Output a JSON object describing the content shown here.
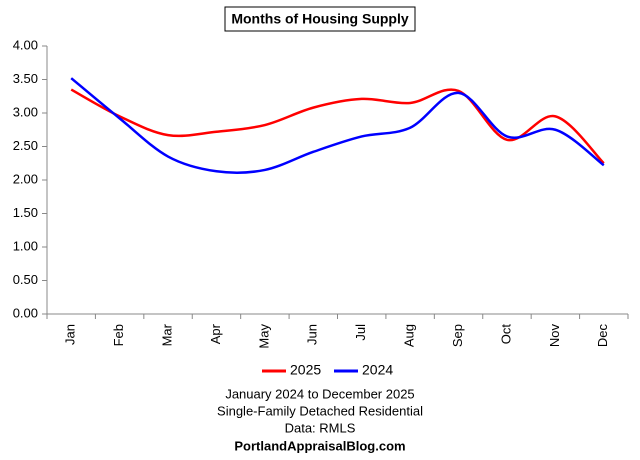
{
  "chart_data": {
    "type": "line",
    "title": "Months of Housing Supply",
    "categories": [
      "Jan",
      "Feb",
      "Mar",
      "Apr",
      "May",
      "Jun",
      "Jul",
      "Aug",
      "Sep",
      "Oct",
      "Nov",
      "Dec"
    ],
    "series": [
      {
        "name": "2025",
        "color": "#ff0000",
        "values": [
          3.35,
          2.95,
          2.67,
          2.72,
          2.82,
          3.08,
          3.21,
          3.15,
          3.33,
          2.6,
          2.95,
          2.25
        ]
      },
      {
        "name": "2024",
        "color": "#0000ff",
        "values": [
          3.52,
          2.92,
          2.35,
          2.13,
          2.15,
          2.42,
          2.65,
          2.78,
          3.3,
          2.65,
          2.75,
          2.22
        ]
      }
    ],
    "ylim": [
      0,
      4
    ],
    "yticks": [
      {
        "value": 0,
        "label": "0.00"
      },
      {
        "value": 0.5,
        "label": "0.50"
      },
      {
        "value": 1,
        "label": "1.00"
      },
      {
        "value": 1.5,
        "label": "1.50"
      },
      {
        "value": 2,
        "label": "2.00"
      },
      {
        "value": 2.5,
        "label": "2.50"
      },
      {
        "value": 3,
        "label": "3.00"
      },
      {
        "value": 3.5,
        "label": "3.50"
      },
      {
        "value": 4,
        "label": "4.00"
      }
    ],
    "notes": [
      "January 2024 to December 2025",
      "Single-Family Detached Residential",
      "Data: RMLS",
      "PortlandAppraisalBlog.com"
    ],
    "smooth": true
  }
}
